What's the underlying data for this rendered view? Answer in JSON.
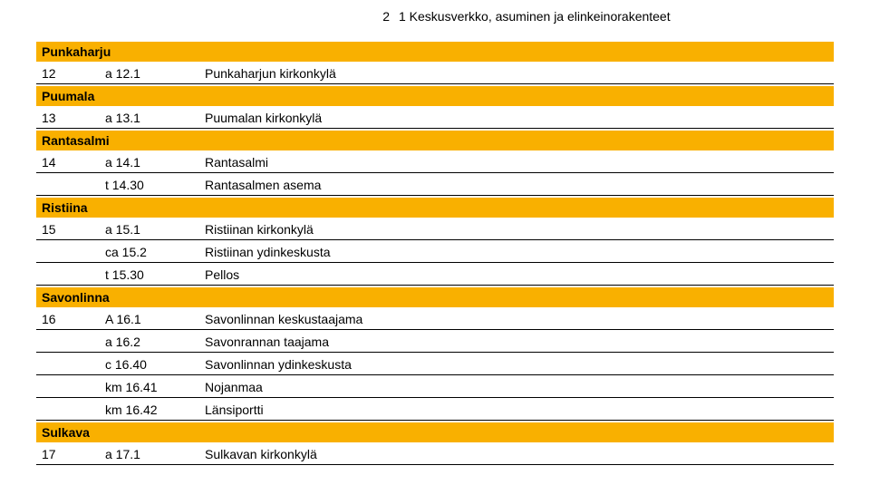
{
  "colors": {
    "section_bg": "#f9b000",
    "border": "#000000",
    "text": "#000000",
    "background": "#ffffff"
  },
  "header": {
    "page_num": "2",
    "title": "1 Keskusverkko, asuminen ja elinkeinorakenteet"
  },
  "sections": [
    {
      "name": "Punkaharju",
      "rows": [
        {
          "c1": "12",
          "c2": "a 12.1",
          "c3": "Punkaharjun kirkonkylä"
        }
      ]
    },
    {
      "name": "Puumala",
      "rows": [
        {
          "c1": "13",
          "c2": "a 13.1",
          "c3": "Puumalan kirkonkylä"
        }
      ]
    },
    {
      "name": "Rantasalmi",
      "rows": [
        {
          "c1": "14",
          "c2": "a 14.1",
          "c3": "Rantasalmi"
        },
        {
          "c1": "",
          "c2": "t 14.30",
          "c3": "Rantasalmen asema"
        }
      ]
    },
    {
      "name": "Ristiina",
      "rows": [
        {
          "c1": "15",
          "c2": "a 15.1",
          "c3": "Ristiinan kirkonkylä"
        },
        {
          "c1": "",
          "c2": "ca 15.2",
          "c3": "Ristiinan ydinkeskusta"
        },
        {
          "c1": "",
          "c2": "t 15.30",
          "c3": "Pellos"
        }
      ]
    },
    {
      "name": "Savonlinna",
      "rows": [
        {
          "c1": "16",
          "c2": "A 16.1",
          "c3": "Savonlinnan keskustaajama"
        },
        {
          "c1": "",
          "c2": "a 16.2",
          "c3": "Savonrannan taajama"
        },
        {
          "c1": "",
          "c2": "c 16.40",
          "c3": "Savonlinnan ydinkeskusta"
        },
        {
          "c1": "",
          "c2": "km 16.41",
          "c3": "Nojanmaa"
        },
        {
          "c1": "",
          "c2": "km 16.42",
          "c3": "Länsiportti"
        }
      ]
    },
    {
      "name": "Sulkava",
      "rows": [
        {
          "c1": "17",
          "c2": "a 17.1",
          "c3": "Sulkavan kirkonkylä"
        }
      ]
    }
  ]
}
